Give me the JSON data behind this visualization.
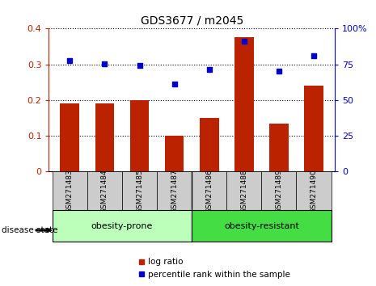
{
  "title": "GDS3677 / m2045",
  "samples": [
    "GSM271483",
    "GSM271484",
    "GSM271485",
    "GSM271487",
    "GSM271486",
    "GSM271488",
    "GSM271489",
    "GSM271490"
  ],
  "log_ratio": [
    0.19,
    0.19,
    0.2,
    0.1,
    0.15,
    0.375,
    0.135,
    0.24
  ],
  "percentile_rank_y": [
    0.31,
    0.302,
    0.298,
    0.245,
    0.285,
    0.365,
    0.28,
    0.325
  ],
  "bar_color": "#bb2200",
  "dot_color": "#0000cc",
  "ylim": [
    0,
    0.4
  ],
  "yticks_left": [
    0,
    0.1,
    0.2,
    0.3,
    0.4
  ],
  "yticks_left_labels": [
    "0",
    "0.1",
    "0.2",
    "0.3",
    "0.4"
  ],
  "yticks_right": [
    0,
    0.1,
    0.2,
    0.3,
    0.4
  ],
  "yticks_right_labels": [
    "0",
    "25",
    "50",
    "75",
    "100%"
  ],
  "groups": [
    {
      "label": "obesity-prone",
      "indices": [
        0,
        1,
        2,
        3
      ],
      "color": "#bbffbb"
    },
    {
      "label": "obesity-resistant",
      "indices": [
        4,
        5,
        6,
        7
      ],
      "color": "#44dd44"
    }
  ],
  "group_label_text": "disease state",
  "legend_bar_label": "log ratio",
  "legend_dot_label": "percentile rank within the sample",
  "background_color": "#ffffff",
  "tick_area_color": "#cccccc",
  "bar_width": 0.55
}
